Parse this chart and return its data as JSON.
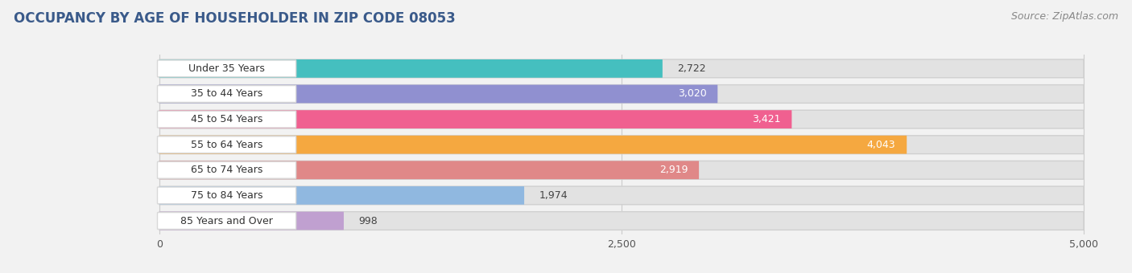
{
  "title": "OCCUPANCY BY AGE OF HOUSEHOLDER IN ZIP CODE 08053",
  "source": "Source: ZipAtlas.com",
  "categories": [
    "Under 35 Years",
    "35 to 44 Years",
    "45 to 54 Years",
    "55 to 64 Years",
    "65 to 74 Years",
    "75 to 84 Years",
    "85 Years and Over"
  ],
  "values": [
    2722,
    3020,
    3421,
    4043,
    2919,
    1974,
    998
  ],
  "bar_colors": [
    "#45bfbf",
    "#9090d0",
    "#f06090",
    "#f5a840",
    "#e08888",
    "#90b8e0",
    "#c0a0d0"
  ],
  "xlim_min": -800,
  "xlim_max": 5200,
  "xdata_min": 0,
  "xdata_max": 5000,
  "xticks": [
    0,
    2500,
    5000
  ],
  "background_color": "#f2f2f2",
  "bar_bg_color": "#e2e2e2",
  "label_bg_color": "#ffffff",
  "title_fontsize": 12,
  "source_fontsize": 9,
  "label_fontsize": 9,
  "value_fontsize": 9,
  "title_color": "#3a5a8a",
  "source_color": "#888888"
}
